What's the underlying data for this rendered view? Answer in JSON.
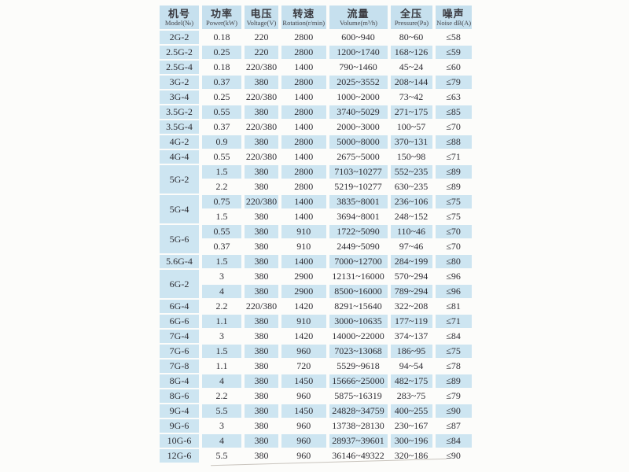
{
  "page": {
    "background": "#fcfcfa",
    "accent_blue": "#cde5f1",
    "header_blue": "#c6e0ee",
    "text_color": "#2e2d33"
  },
  "table": {
    "columns": [
      {
        "key": "model",
        "zh": "机号",
        "en": "Model(№)"
      },
      {
        "key": "power",
        "zh": "功率",
        "en": "Power(kW)"
      },
      {
        "key": "voltage",
        "zh": "电压",
        "en": "Voltage(V)"
      },
      {
        "key": "rotation",
        "zh": "转速",
        "en": "Rotation(r/min)"
      },
      {
        "key": "volume",
        "zh": "流量",
        "en": "Volume(m³/h)"
      },
      {
        "key": "pressure",
        "zh": "全压",
        "en": "Pressure(Pa)"
      },
      {
        "key": "noise",
        "zh": "噪声",
        "en": "Noise dB(A)"
      }
    ],
    "groups": [
      {
        "model": "2G-2",
        "rows": [
          [
            "0.18",
            "220",
            "2800",
            "600~940",
            "80~60",
            "≤58"
          ]
        ]
      },
      {
        "model": "2.5G-2",
        "rows": [
          [
            "0.25",
            "220",
            "2800",
            "1200~1740",
            "168~126",
            "≤59"
          ]
        ]
      },
      {
        "model": "2.5G-4",
        "rows": [
          [
            "0.18",
            "220/380",
            "1400",
            "790~1460",
            "45~24",
            "≤60"
          ]
        ]
      },
      {
        "model": "3G-2",
        "rows": [
          [
            "0.37",
            "380",
            "2800",
            "2025~3552",
            "208~144",
            "≤79"
          ]
        ]
      },
      {
        "model": "3G-4",
        "rows": [
          [
            "0.25",
            "220/380",
            "1400",
            "1000~2000",
            "73~42",
            "≤63"
          ]
        ]
      },
      {
        "model": "3.5G-2",
        "rows": [
          [
            "0.55",
            "380",
            "2800",
            "3740~5029",
            "271~175",
            "≤85"
          ]
        ]
      },
      {
        "model": "3.5G-4",
        "rows": [
          [
            "0.37",
            "220/380",
            "1400",
            "2000~3000",
            "100~57",
            "≤70"
          ]
        ]
      },
      {
        "model": "4G-2",
        "rows": [
          [
            "0.9",
            "380",
            "2800",
            "5000~8000",
            "370~131",
            "≤88"
          ]
        ]
      },
      {
        "model": "4G-4",
        "rows": [
          [
            "0.55",
            "220/380",
            "1400",
            "2675~5000",
            "150~98",
            "≤71"
          ]
        ]
      },
      {
        "model": "5G-2",
        "rows": [
          [
            "1.5",
            "380",
            "2800",
            "7103~10277",
            "552~235",
            "≤89"
          ],
          [
            "2.2",
            "380",
            "2800",
            "5219~10277",
            "630~235",
            "≤89"
          ]
        ]
      },
      {
        "model": "5G-4",
        "rows": [
          [
            "0.75",
            "220/380",
            "1400",
            "3835~8001",
            "236~106",
            "≤75"
          ],
          [
            "1.5",
            "380",
            "1400",
            "3694~8001",
            "248~152",
            "≤75"
          ]
        ]
      },
      {
        "model": "5G-6",
        "rows": [
          [
            "0.55",
            "380",
            "910",
            "1722~5090",
            "110~46",
            "≤70"
          ],
          [
            "0.37",
            "380",
            "910",
            "2449~5090",
            "97~46",
            "≤70"
          ]
        ]
      },
      {
        "model": "5.6G-4",
        "rows": [
          [
            "1.5",
            "380",
            "1400",
            "7000~12700",
            "284~199",
            "≤80"
          ]
        ]
      },
      {
        "model": "6G-2",
        "rows": [
          [
            "3",
            "380",
            "2900",
            "12131~16000",
            "570~294",
            "≤96"
          ],
          [
            "4",
            "380",
            "2900",
            "8500~16000",
            "789~294",
            "≤96"
          ]
        ]
      },
      {
        "model": "6G-4",
        "rows": [
          [
            "2.2",
            "220/380",
            "1420",
            "8291~15640",
            "322~208",
            "≤81"
          ]
        ]
      },
      {
        "model": "6G-6",
        "rows": [
          [
            "1.1",
            "380",
            "910",
            "3000~10635",
            "177~119",
            "≤71"
          ]
        ]
      },
      {
        "model": "7G-4",
        "rows": [
          [
            "3",
            "380",
            "1420",
            "14000~22000",
            "374~137",
            "≤84"
          ]
        ]
      },
      {
        "model": "7G-6",
        "rows": [
          [
            "1.5",
            "380",
            "960",
            "7023~13068",
            "186~95",
            "≤75"
          ]
        ]
      },
      {
        "model": "7G-8",
        "rows": [
          [
            "1.1",
            "380",
            "720",
            "5529~9618",
            "94~54",
            "≤78"
          ]
        ]
      },
      {
        "model": "8G-4",
        "rows": [
          [
            "4",
            "380",
            "1450",
            "15666~25000",
            "482~175",
            "≤89"
          ]
        ]
      },
      {
        "model": "8G-6",
        "rows": [
          [
            "2.2",
            "380",
            "960",
            "5875~16319",
            "283~75",
            "≤79"
          ]
        ]
      },
      {
        "model": "9G-4",
        "rows": [
          [
            "5.5",
            "380",
            "1450",
            "24828~34759",
            "400~255",
            "≤90"
          ]
        ]
      },
      {
        "model": "9G-6",
        "rows": [
          [
            "3",
            "380",
            "960",
            "13738~28130",
            "230~167",
            "≤87"
          ]
        ]
      },
      {
        "model": "10G-6",
        "rows": [
          [
            "4",
            "380",
            "960",
            "28937~39601",
            "300~196",
            "≤84"
          ]
        ]
      },
      {
        "model": "12G-6",
        "rows": [
          [
            "5.5",
            "380",
            "960",
            "36146~49322",
            "320~186",
            "≤90"
          ]
        ]
      }
    ]
  }
}
